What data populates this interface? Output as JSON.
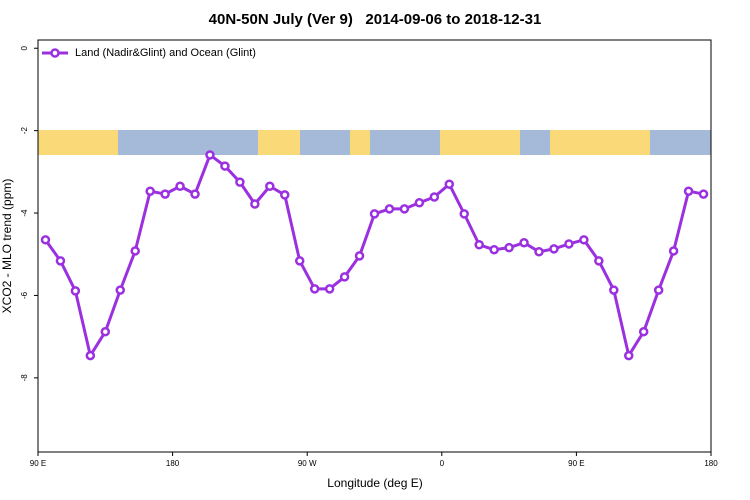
{
  "chart_data": {
    "type": "line",
    "title": "40N-50N July (Ver 9)   2014-09-06 to 2018-12-31",
    "x_label": "Longitude (deg E)",
    "y_label": "XCO2 - MLO trend (ppm)",
    "xlim": [
      90,
      540
    ],
    "xticks": [
      {
        "value": 90,
        "label": "90 E"
      },
      {
        "value": 180,
        "label": "180"
      },
      {
        "value": 270,
        "label": "90 W"
      },
      {
        "value": 360,
        "label": "0"
      },
      {
        "value": 450,
        "label": "90 E"
      },
      {
        "value": 540,
        "label": "180"
      }
    ],
    "ylim": [
      -9.8,
      0.2
    ],
    "yticks": [
      0,
      -2,
      -4,
      -6,
      -8
    ],
    "x": [
      95,
      105,
      115,
      125,
      135,
      145,
      155,
      165,
      175,
      185,
      195,
      205,
      215,
      225,
      235,
      245,
      255,
      265,
      275,
      285,
      295,
      305,
      315,
      325,
      335,
      345,
      355,
      365,
      375,
      385,
      395,
      405,
      415,
      425,
      435,
      445,
      455,
      465,
      475,
      485,
      495,
      505,
      515,
      525,
      535
    ],
    "series": [
      {
        "name": "Land (Nadir&Glint) and Ocean (Glint)",
        "color": "#9b30e0",
        "values": [
          -4.65,
          -5.16,
          -5.89,
          -7.46,
          -6.88,
          -5.87,
          -4.92,
          -3.47,
          -3.54,
          -3.35,
          -3.54,
          -2.59,
          -2.86,
          -3.25,
          -3.78,
          -3.35,
          -3.56,
          -5.16,
          -5.84,
          -5.84,
          -5.55,
          -5.04,
          -4.02,
          -3.9,
          -3.9,
          -3.75,
          -3.61,
          -3.3,
          -4.02,
          -4.77,
          -4.89,
          -4.84,
          -4.72,
          -4.94,
          -4.87,
          -4.75,
          -4.65,
          -5.16,
          -5.87,
          -7.46,
          -6.88,
          -5.87,
          -4.92,
          -3.47,
          -3.54
        ]
      }
    ]
  }
}
